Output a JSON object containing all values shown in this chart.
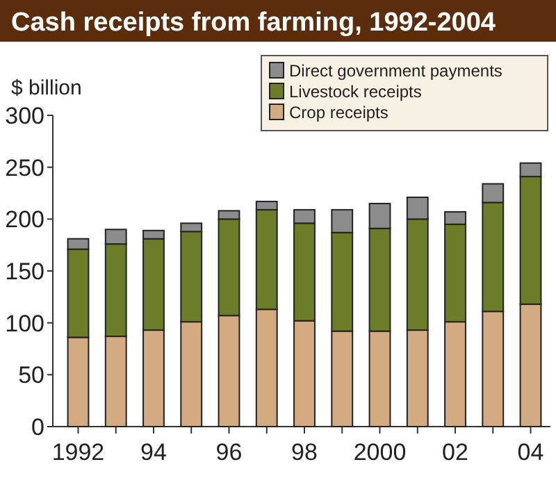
{
  "chart_data": {
    "type": "bar",
    "title": "Cash receipts from farming, 1992-2004",
    "ylabel": "$ billion",
    "stacked": true,
    "categories": [
      "1992",
      null,
      "94",
      null,
      "96",
      null,
      "98",
      null,
      "2000",
      null,
      "02",
      null,
      "04"
    ],
    "series": [
      {
        "name": "Crop receipts",
        "color": "#d4aa82",
        "values": [
          86,
          87,
          93,
          101,
          107,
          113,
          102,
          92,
          92,
          93,
          101,
          111,
          118
        ]
      },
      {
        "name": "Livestock receipts",
        "color": "#6b7d28",
        "values": [
          85,
          89,
          88,
          87,
          93,
          96,
          94,
          95,
          99,
          107,
          94,
          105,
          123
        ]
      },
      {
        "name": "Direct government payments",
        "color": "#8c8c8c",
        "values": [
          10,
          14,
          8,
          8,
          8,
          8,
          13,
          22,
          24,
          21,
          12,
          18,
          13
        ]
      }
    ],
    "ylim": [
      0,
      300
    ],
    "yticks": [
      0,
      50,
      100,
      150,
      200,
      250,
      300
    ],
    "grid": false,
    "legend": "top right"
  }
}
